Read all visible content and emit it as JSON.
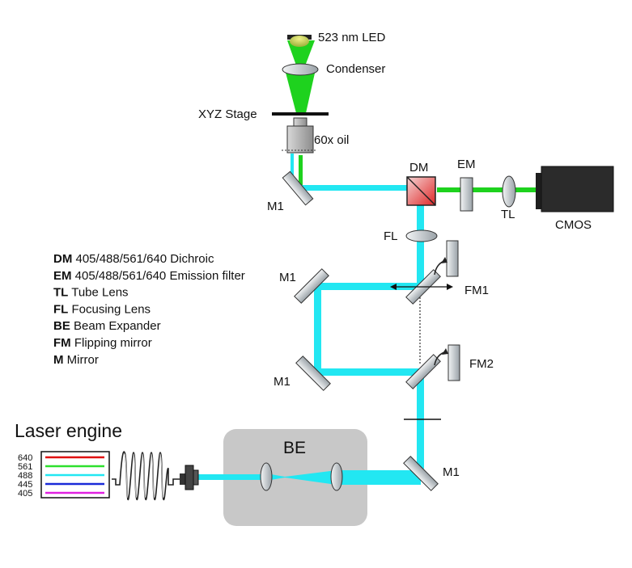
{
  "colors": {
    "beam_cyan": "#22e7f2",
    "beam_green": "#1ed21e",
    "glass_gray": "#c9cdd0",
    "be_box": "#c8c8c8",
    "dm_red": "#e23a3a",
    "camera": "#2b2b2b"
  },
  "labels": {
    "led": "523 nm LED",
    "condenser": "Condenser",
    "stage": "XYZ Stage",
    "objective": "60x oil",
    "dm": "DM",
    "em": "EM",
    "tl": "TL",
    "cmos": "CMOS",
    "fl": "FL",
    "fm1": "FM1",
    "fm2": "FM2",
    "m1_top": "M1",
    "m1_left_upper": "M1",
    "m1_left_lower": "M1",
    "m1_bottom": "M1",
    "be": "BE",
    "laser_engine": "Laser engine"
  },
  "laser_lines": [
    {
      "wavelength": "640",
      "color": "#e01010"
    },
    {
      "wavelength": "561",
      "color": "#2ee02e"
    },
    {
      "wavelength": "488",
      "color": "#22e7f2"
    },
    {
      "wavelength": "445",
      "color": "#1a2ad8"
    },
    {
      "wavelength": "405",
      "color": "#e020e0"
    }
  ],
  "legend": [
    {
      "abbr": "DM",
      "text": "405/488/561/640 Dichroic"
    },
    {
      "abbr": "EM",
      "text": "405/488/561/640 Emission filter"
    },
    {
      "abbr": "TL",
      "text": "Tube Lens"
    },
    {
      "abbr": "FL",
      "text": "Focusing Lens"
    },
    {
      "abbr": "BE",
      "text": "Beam Expander"
    },
    {
      "abbr": "FM",
      "text": "Flipping mirror"
    },
    {
      "abbr": "M",
      "text": "Mirror"
    }
  ]
}
